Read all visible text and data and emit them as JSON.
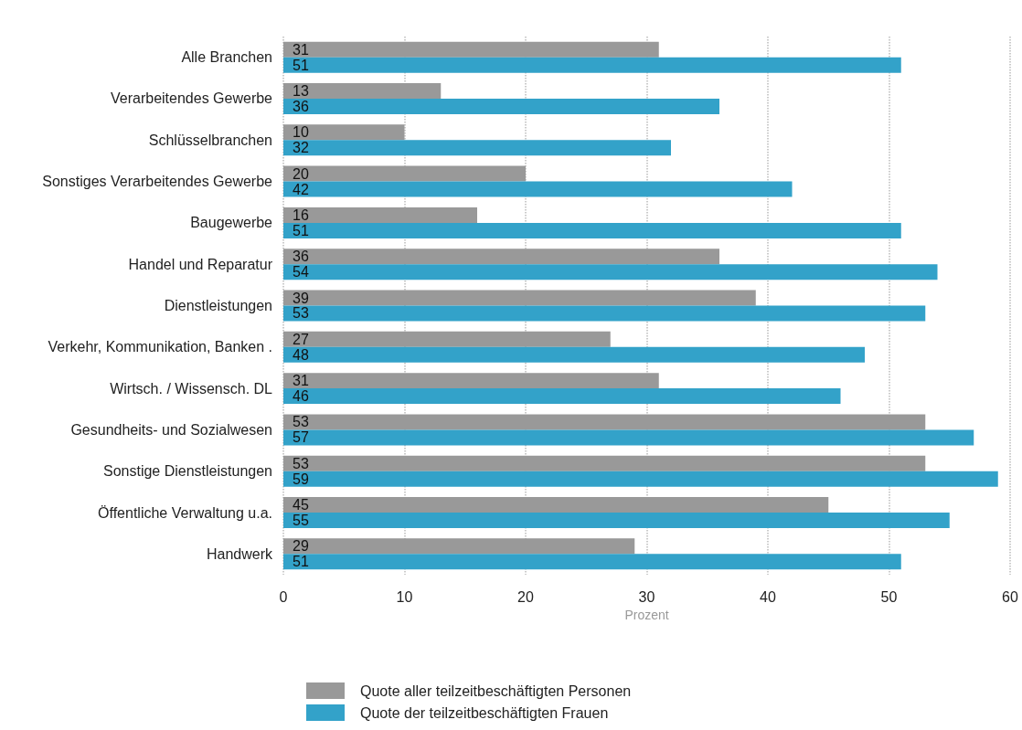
{
  "chart_data": {
    "type": "bar",
    "orientation": "horizontal",
    "categories": [
      "Alle Branchen",
      "Verarbeitendes Gewerbe",
      "Schlüsselbranchen",
      "Sonstiges Verarbeitendes Gewerbe",
      "Baugewerbe",
      "Handel und Reparatur",
      "Dienstleistungen",
      "Verkehr, Kommunikation, Banken .",
      "Wirtsch. / Wissensch. DL",
      "Gesundheits- und Sozialwesen",
      "Sonstige Dienstleistungen",
      "Öffentliche Verwaltung u.a.",
      "Handwerk"
    ],
    "series": [
      {
        "name": "Quote aller teilzeitbeschäftigten Personen",
        "color": "#999999",
        "values": [
          31,
          13,
          10,
          20,
          16,
          36,
          39,
          27,
          31,
          53,
          53,
          45,
          29
        ]
      },
      {
        "name": "Quote der teilzeitbeschäftigten Frauen",
        "color": "#33a2c9",
        "values": [
          51,
          36,
          32,
          42,
          51,
          54,
          53,
          48,
          46,
          57,
          59,
          55,
          51
        ]
      }
    ],
    "xlabel": "Prozent",
    "xlim": [
      0,
      60
    ],
    "xticks": [
      0,
      10,
      20,
      30,
      40,
      50,
      60
    ],
    "grid": "x",
    "legend": "bottom",
    "data_labels": true
  }
}
